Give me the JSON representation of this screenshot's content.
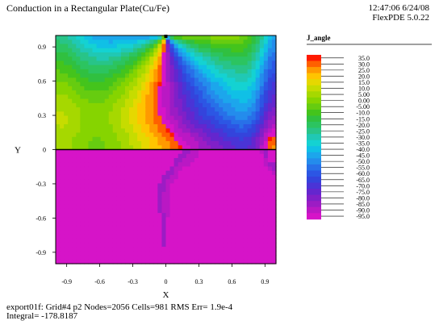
{
  "header": {
    "title": "Conduction in a Rectangular Plate(Cu/Fe)",
    "time": "12:47:06 6/24/08",
    "software": "FlexPDE 5.0.22"
  },
  "footer": {
    "line1": "export01f:  Grid#4  p2  Nodes=2056 Cells=981 RMS Err= 1.9e-4",
    "line2": "Integral= -178.8187"
  },
  "chart_data": {
    "type": "heatmap",
    "title": "Conduction in a Rectangular Plate(Cu/Fe)",
    "xlabel": "X",
    "ylabel": "Y",
    "xlim": [
      -1.0,
      1.0
    ],
    "ylim": [
      -1.0,
      1.0
    ],
    "xticks": [
      -0.9,
      -0.6,
      -0.3,
      0,
      0.3,
      0.6,
      0.9
    ],
    "xtick_labels": [
      "-0.9",
      "-0.6",
      "-0.3",
      "0",
      "0.3",
      "0.6",
      "0.9"
    ],
    "yticks": [
      0.9,
      0.6,
      0.3,
      0,
      -0.3,
      -0.6,
      -0.9
    ],
    "ytick_labels": [
      "0.9",
      "0.6",
      "0.3",
      "0",
      "-0.3",
      "-0.6",
      "-0.9"
    ],
    "grid": false,
    "legend": {
      "title": "J_angle",
      "placement": "right",
      "levels": [
        35,
        30,
        25,
        20,
        15,
        10,
        5,
        0,
        -5,
        -10,
        -15,
        -20,
        -25,
        -30,
        -35,
        -40,
        -45,
        -50,
        -55,
        -60,
        -65,
        -70,
        -75,
        -80,
        -85,
        -90,
        -95
      ],
      "labels": [
        "35.0",
        "30.0",
        "25.0",
        "20.0",
        "15.0",
        "10.0",
        "5.00",
        "0.00",
        "-5.00",
        "-10.0",
        "-15.0",
        "-20.0",
        "-25.0",
        "-30.0",
        "-35.0",
        "-40.0",
        "-45.0",
        "-50.0",
        "-55.0",
        "-60.0",
        "-65.0",
        "-70.0",
        "-75.0",
        "-80.0",
        "-85.0",
        "-90.0",
        "-95.0"
      ],
      "colors": [
        "#ff1a00",
        "#ff6000",
        "#ff9a00",
        "#ffc400",
        "#e6d800",
        "#c6dc00",
        "#a6d800",
        "#86d400",
        "#66cc10",
        "#44c41c",
        "#30c040",
        "#2cc460",
        "#28c488",
        "#20c8b4",
        "#14d2d2",
        "#10c0e6",
        "#1ca6ec",
        "#248cec",
        "#2870e8",
        "#2c56e4",
        "#3444dc",
        "#4a34d6",
        "#6426ce",
        "#8020c8",
        "#9c1cc4",
        "#ba18c4",
        "#d614c8"
      ]
    }
  }
}
